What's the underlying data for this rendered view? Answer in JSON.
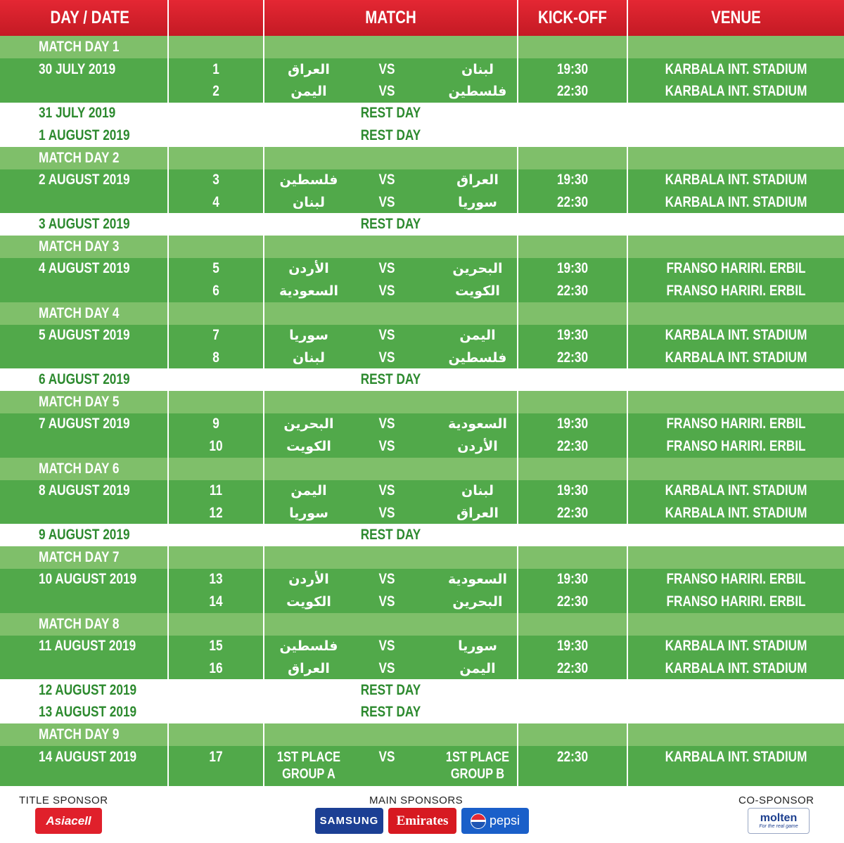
{
  "header": {
    "day_date": "DAY / DATE",
    "match": "MATCH",
    "kickoff": "KICK-OFF",
    "venue": "VENUE"
  },
  "vs": "VS",
  "rows": [
    {
      "type": "md",
      "label": "MATCH DAY 1"
    },
    {
      "type": "m",
      "date": "30 JULY 2019",
      "num": "1",
      "home": "لبنان",
      "away": "العراق",
      "time": "19:30",
      "venue": "KARBALA INT. STADIUM"
    },
    {
      "type": "m",
      "date": "",
      "num": "2",
      "home": "فلسطين",
      "away": "اليمن",
      "time": "22:30",
      "venue": "KARBALA INT. STADIUM"
    },
    {
      "type": "rest",
      "date": "31 JULY 2019",
      "label": "REST DAY"
    },
    {
      "type": "rest",
      "date": "1 AUGUST 2019",
      "label": "REST DAY"
    },
    {
      "type": "md",
      "label": "MATCH DAY 2"
    },
    {
      "type": "m",
      "date": "2 AUGUST 2019",
      "num": "3",
      "home": "العراق",
      "away": "فلسطين",
      "time": "19:30",
      "venue": "KARBALA INT. STADIUM"
    },
    {
      "type": "m",
      "date": "",
      "num": "4",
      "home": "سوريا",
      "away": "لبنان",
      "time": "22:30",
      "venue": "KARBALA INT. STADIUM"
    },
    {
      "type": "rest",
      "date": "3 AUGUST 2019",
      "label": "REST DAY"
    },
    {
      "type": "md",
      "label": "MATCH DAY 3"
    },
    {
      "type": "m",
      "date": "4 AUGUST 2019",
      "num": "5",
      "home": "البحرين",
      "away": "الأردن",
      "time": "19:30",
      "venue": "FRANSO HARIRI. ERBIL"
    },
    {
      "type": "m",
      "date": "",
      "num": "6",
      "home": "الكويت",
      "away": "السعودية",
      "time": "22:30",
      "venue": "FRANSO HARIRI. ERBIL"
    },
    {
      "type": "md",
      "label": "MATCH DAY 4"
    },
    {
      "type": "m",
      "date": "5 AUGUST 2019",
      "num": "7",
      "home": "اليمن",
      "away": "سوريا",
      "time": "19:30",
      "venue": "KARBALA INT. STADIUM"
    },
    {
      "type": "m",
      "date": "",
      "num": "8",
      "home": "فلسطين",
      "away": "لبنان",
      "time": "22:30",
      "venue": "KARBALA INT. STADIUM"
    },
    {
      "type": "rest",
      "date": "6 AUGUST 2019",
      "label": "REST DAY"
    },
    {
      "type": "md",
      "label": "MATCH DAY 5"
    },
    {
      "type": "m",
      "date": "7 AUGUST 2019",
      "num": "9",
      "home": "السعودية",
      "away": "البحرين",
      "time": "19:30",
      "venue": "FRANSO HARIRI. ERBIL"
    },
    {
      "type": "m",
      "date": "",
      "num": "10",
      "home": "الأردن",
      "away": "الكويت",
      "time": "22:30",
      "venue": "FRANSO HARIRI. ERBIL"
    },
    {
      "type": "md",
      "label": "MATCH DAY 6"
    },
    {
      "type": "m",
      "date": "8 AUGUST 2019",
      "num": "11",
      "home": "لبنان",
      "away": "اليمن",
      "time": "19:30",
      "venue": "KARBALA INT. STADIUM"
    },
    {
      "type": "m",
      "date": "",
      "num": "12",
      "home": "العراق",
      "away": "سوريا",
      "time": "22:30",
      "venue": "KARBALA INT. STADIUM"
    },
    {
      "type": "rest",
      "date": "9 AUGUST 2019",
      "label": "REST DAY"
    },
    {
      "type": "md",
      "label": "MATCH DAY 7"
    },
    {
      "type": "m",
      "date": "10 AUGUST 2019",
      "num": "13",
      "home": "السعودية",
      "away": "الأردن",
      "time": "19:30",
      "venue": "FRANSO HARIRI. ERBIL"
    },
    {
      "type": "m",
      "date": "",
      "num": "14",
      "home": "البحرين",
      "away": "الكويت",
      "time": "22:30",
      "venue": "FRANSO HARIRI. ERBIL"
    },
    {
      "type": "md",
      "label": "MATCH DAY 8"
    },
    {
      "type": "m",
      "date": "11 AUGUST 2019",
      "num": "15",
      "home": "سوريا",
      "away": "فلسطين",
      "time": "19:30",
      "venue": "KARBALA INT. STADIUM"
    },
    {
      "type": "m",
      "date": "",
      "num": "16",
      "home": "اليمن",
      "away": "العراق",
      "time": "22:30",
      "venue": "KARBALA INT. STADIUM"
    },
    {
      "type": "rest",
      "date": "12 AUGUST 2019",
      "label": "REST DAY"
    },
    {
      "type": "rest",
      "date": "13 AUGUST 2019",
      "label": "REST DAY"
    },
    {
      "type": "md",
      "label": "MATCH DAY 9"
    },
    {
      "type": "final",
      "date": "14 AUGUST 2019",
      "num": "17",
      "home": "1ST PLACE\nGROUP B",
      "away": "1ST PLACE\nGROUP A",
      "time": "22:30",
      "venue": "KARBALA INT. STADIUM"
    }
  ],
  "footer": {
    "title_sponsor_label": "TITLE SPONSOR",
    "main_sponsors_label": "MAIN SPONSORS",
    "co_sponsor_label": "CO-SPONSOR",
    "title_sponsor": "Asiacell",
    "main_sponsors": [
      "SAMSUNG",
      "Emirates",
      "pepsi"
    ],
    "co_sponsor": "molten",
    "co_sponsor_tagline": "For the real game"
  },
  "colors": {
    "header_red": "#d8202b",
    "band_light": "#7fbf6a",
    "band_dark": "#51a94a",
    "text_green": "#2d8a2f"
  }
}
